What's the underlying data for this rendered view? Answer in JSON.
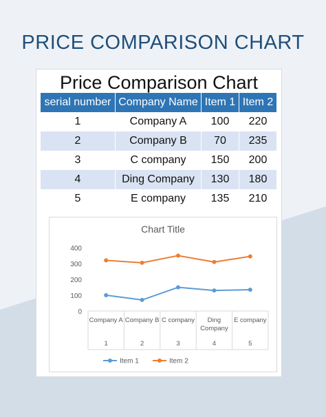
{
  "page": {
    "heading": "PRICE COMPARISON CHART"
  },
  "sheet": {
    "title": "Price Comparison Chart",
    "columns": [
      "serial number",
      "Company Name",
      "Item 1",
      "Item 2"
    ],
    "rows": [
      {
        "serial": "1",
        "company": "Company A",
        "item1": "100",
        "item2": "220"
      },
      {
        "serial": "2",
        "company": "Company B",
        "item1": "70",
        "item2": "235"
      },
      {
        "serial": "3",
        "company": "C company",
        "item1": "150",
        "item2": "200"
      },
      {
        "serial": "4",
        "company": "Ding Company",
        "item1": "130",
        "item2": "180"
      },
      {
        "serial": "5",
        "company": "E company",
        "item1": "135",
        "item2": "210"
      }
    ]
  },
  "colors": {
    "heading": "#1f4e79",
    "header_fill": "#2e75b6",
    "alt_row_fill": "#dae3f3",
    "series_item1": "#5b9bd5",
    "series_item2": "#ed7d31"
  },
  "chart_data": {
    "type": "line",
    "title": "Chart Title",
    "categories": [
      {
        "label": "Company A",
        "index": "1"
      },
      {
        "label": "Company B",
        "index": "2"
      },
      {
        "label": "C company",
        "index": "3"
      },
      {
        "label": "Ding Company",
        "index": "4"
      },
      {
        "label": "E company",
        "index": "5"
      }
    ],
    "series": [
      {
        "name": "Item 1",
        "values": [
          100,
          70,
          150,
          130,
          135
        ]
      },
      {
        "name": "Item 2",
        "values": [
          320,
          305,
          350,
          310,
          345
        ]
      }
    ],
    "yticks": [
      0,
      100,
      200,
      300,
      400
    ],
    "ylim": [
      0,
      400
    ],
    "grid": false,
    "legend": "bottom"
  }
}
